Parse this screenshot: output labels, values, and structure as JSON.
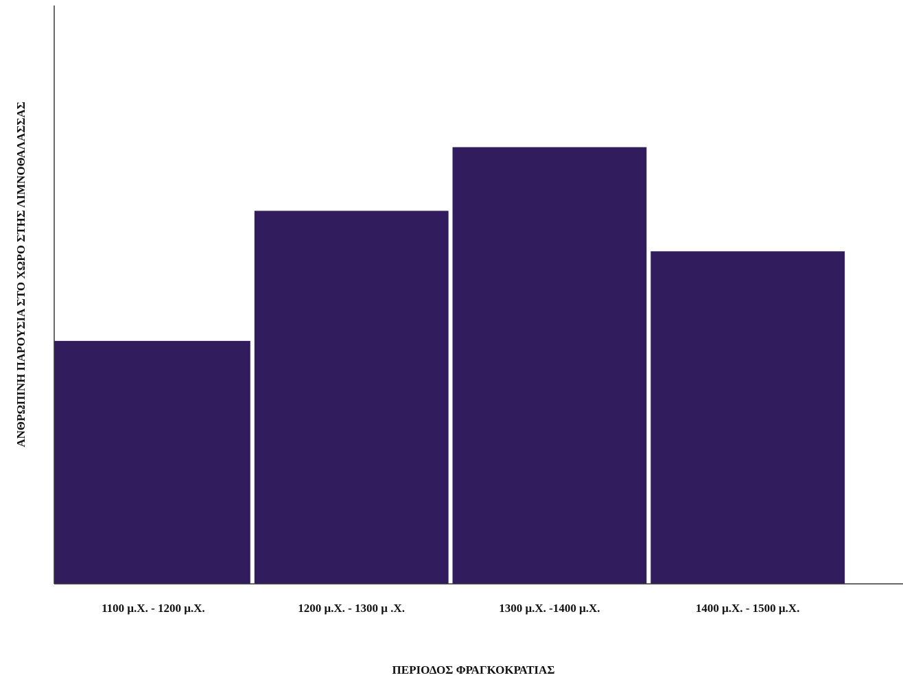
{
  "chart_data": {
    "type": "bar",
    "title": "",
    "xlabel": "ΠΕΡΙΟΔΟΣ ΦΡΑΓΚΟΚΡΑΤΙΑΣ",
    "ylabel": "ΑΝΘΡΩΠΙΝΗ ΠΑΡΟΥΣΙΑ ΣΤΟ ΧΩΡΟ ΣΤΗΣ ΛΙΜΝΟΘΑΛΑΣΣΑΣ",
    "categories": [
      "1100 μ.Χ. - 1200 μ.Χ.",
      "1200 μ.Χ. - 1300 μ .Χ.",
      "1300 μ.Χ. -1400 μ.Χ.",
      "1400 μ.Χ. - 1500 μ.Χ."
    ],
    "values": [
      42,
      64.5,
      75.5,
      57.5
    ],
    "ylim": [
      0,
      100
    ],
    "grid": false,
    "legend": "none",
    "bar_color": "#311d5e",
    "y_tick_labels_shown": false
  }
}
